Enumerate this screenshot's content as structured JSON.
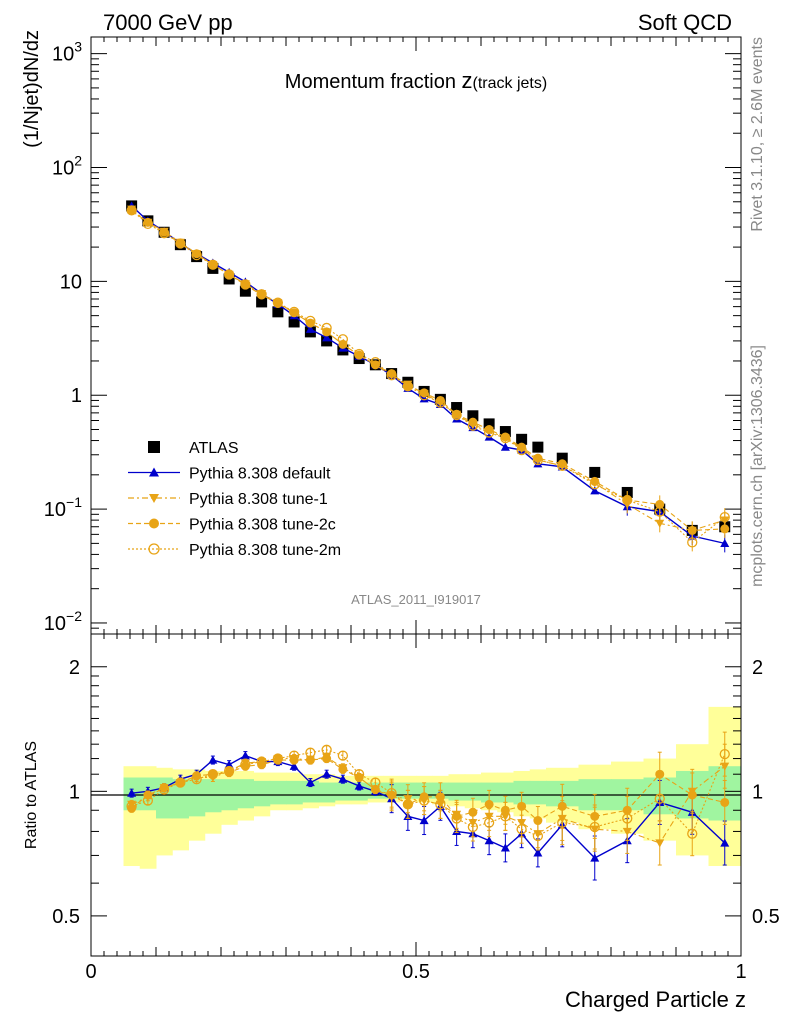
{
  "header": {
    "left": "7000 GeV pp",
    "right": "Soft QCD"
  },
  "side_text": {
    "rivet": "Rivet 3.1.10, ≥ 2.6M events",
    "mcplots": "mcplots.cern.ch [arXiv:1306.3436]"
  },
  "analysis_id": "ATLAS_2011_I919017",
  "colors": {
    "data": "#000000",
    "default": "#0000cc",
    "tunes": "#e8a416",
    "band_green": "#a0f5a0",
    "band_yellow": "#ffff99"
  },
  "chart_data": [
    {
      "type": "scatter",
      "title_main": "Momentum fraction ",
      "title_var": "z",
      "title_sub": "(track jets)",
      "ylabel": "(1/Njet)dN/dz",
      "xlabel": "",
      "yscale": "log",
      "xlim": [
        0,
        1
      ],
      "ylim": [
        0.008,
        1400
      ],
      "y_ticks": [
        {
          "v": 0.01,
          "base": "10",
          "exp": "−2"
        },
        {
          "v": 0.1,
          "base": "10",
          "exp": "−1"
        },
        {
          "v": 1,
          "base": "1",
          "exp": ""
        },
        {
          "v": 10,
          "base": "10",
          "exp": ""
        },
        {
          "v": 100,
          "base": "10",
          "exp": "2"
        },
        {
          "v": 1000,
          "base": "10",
          "exp": "3"
        }
      ],
      "x": [
        0.0625,
        0.0875,
        0.1125,
        0.1375,
        0.1625,
        0.1875,
        0.2125,
        0.2375,
        0.2625,
        0.2875,
        0.3125,
        0.3375,
        0.3625,
        0.3875,
        0.4125,
        0.4375,
        0.4625,
        0.4875,
        0.5125,
        0.5375,
        0.5625,
        0.5875,
        0.6125,
        0.6375,
        0.6625,
        0.6875,
        0.725,
        0.775,
        0.825,
        0.875,
        0.925,
        0.975
      ],
      "legend": [
        {
          "label": "ATLAS",
          "marker": "square"
        },
        {
          "label": "Pythia 8.308 default",
          "marker": "triangle-up"
        },
        {
          "label": "Pythia 8.308 tune-1",
          "marker": "triangle-down"
        },
        {
          "label": "Pythia 8.308 tune-2c",
          "marker": "circle"
        },
        {
          "label": "Pythia 8.308 tune-2m",
          "marker": "open-circle"
        }
      ],
      "series": [
        {
          "name": "ATLAS",
          "values": [
            46,
            34,
            27,
            21,
            16.5,
            13,
            10.5,
            8.2,
            6.6,
            5.4,
            4.4,
            3.6,
            3.0,
            2.5,
            2.1,
            1.85,
            1.55,
            1.3,
            1.08,
            0.92,
            0.78,
            0.66,
            0.56,
            0.48,
            0.41,
            0.35,
            0.28,
            0.21,
            0.14,
            0.1,
            0.065,
            0.07
          ]
        },
        {
          "name": "Pythia 8.308 default",
          "values": [
            46,
            34,
            27.5,
            21.5,
            17.5,
            14.5,
            12,
            9.9,
            7.8,
            6.3,
            5.0,
            3.8,
            3.2,
            2.6,
            2.2,
            1.85,
            1.5,
            1.15,
            0.93,
            0.83,
            0.62,
            0.52,
            0.43,
            0.35,
            0.33,
            0.25,
            0.235,
            0.145,
            0.105,
            0.095,
            0.058,
            0.05
          ]
        },
        {
          "name": "Pythia 8.308 tune-1",
          "values": [
            43,
            33,
            27.5,
            22,
            17.5,
            14,
            11.5,
            9.5,
            7.8,
            6.5,
            5.3,
            4.3,
            3.6,
            2.8,
            2.25,
            1.85,
            1.5,
            1.25,
            1.03,
            0.86,
            0.68,
            0.55,
            0.49,
            0.42,
            0.34,
            0.27,
            0.24,
            0.17,
            0.11,
            0.075,
            0.065,
            0.08
          ]
        },
        {
          "name": "Pythia 8.308 tune-2c",
          "values": [
            42,
            33,
            27,
            21.5,
            17.5,
            14,
            11.5,
            9.3,
            7.6,
            6.4,
            5.3,
            4.3,
            3.6,
            2.8,
            2.25,
            1.85,
            1.55,
            1.2,
            1.05,
            0.9,
            0.68,
            0.58,
            0.5,
            0.43,
            0.35,
            0.28,
            0.25,
            0.175,
            0.12,
            0.11,
            0.065,
            0.067
          ]
        },
        {
          "name": "Pythia 8.308 tune-2m",
          "values": [
            42,
            32,
            26.5,
            21.5,
            17,
            14,
            11.5,
            9.4,
            7.7,
            6.5,
            5.4,
            4.5,
            3.9,
            3.1,
            2.3,
            1.95,
            1.5,
            1.2,
            1.0,
            0.86,
            0.67,
            0.54,
            0.47,
            0.42,
            0.33,
            0.27,
            0.24,
            0.165,
            0.12,
            0.095,
            0.051,
            0.085
          ]
        }
      ]
    },
    {
      "type": "scatter",
      "ylabel": "Ratio to ATLAS",
      "xlabel": "Charged Particle z",
      "yscale": "log",
      "xlim": [
        0,
        1
      ],
      "ylim": [
        0.4,
        2.4
      ],
      "y_ticks": [
        0.5,
        1,
        2
      ],
      "x_ticks": [
        {
          "v": 0,
          "label": "0"
        },
        {
          "v": 0.5,
          "label": "0.5"
        },
        {
          "v": 1,
          "label": "1"
        }
      ],
      "band_edges": [
        0.05,
        0.075,
        0.1,
        0.125,
        0.15,
        0.175,
        0.2,
        0.225,
        0.25,
        0.275,
        0.3,
        0.325,
        0.35,
        0.375,
        0.4,
        0.425,
        0.45,
        0.475,
        0.5,
        0.525,
        0.55,
        0.575,
        0.6,
        0.625,
        0.65,
        0.675,
        0.7,
        0.75,
        0.8,
        0.85,
        0.9,
        0.95,
        1.0
      ],
      "band_green": {
        "low": [
          0.9,
          0.9,
          0.86,
          0.86,
          0.87,
          0.89,
          0.9,
          0.91,
          0.92,
          0.93,
          0.93,
          0.94,
          0.94,
          0.95,
          0.95,
          0.96,
          0.96,
          0.96,
          0.96,
          0.96,
          0.95,
          0.95,
          0.94,
          0.94,
          0.93,
          0.93,
          0.92,
          0.9,
          0.9,
          0.88,
          0.86,
          0.85
        ],
        "high": [
          1.08,
          1.08,
          1.08,
          1.07,
          1.07,
          1.07,
          1.07,
          1.07,
          1.06,
          1.06,
          1.06,
          1.06,
          1.05,
          1.05,
          1.05,
          1.05,
          1.05,
          1.05,
          1.05,
          1.05,
          1.05,
          1.05,
          1.05,
          1.05,
          1.06,
          1.06,
          1.06,
          1.07,
          1.07,
          1.08,
          1.12,
          1.15
        ]
      },
      "band_yellow": {
        "low": [
          0.66,
          0.65,
          0.7,
          0.72,
          0.76,
          0.79,
          0.83,
          0.85,
          0.87,
          0.9,
          0.9,
          0.91,
          0.92,
          0.93,
          0.93,
          0.94,
          0.94,
          0.95,
          0.94,
          0.93,
          0.92,
          0.91,
          0.9,
          0.89,
          0.87,
          0.86,
          0.84,
          0.81,
          0.79,
          0.76,
          0.7,
          0.66
        ],
        "high": [
          1.15,
          1.15,
          1.14,
          1.13,
          1.13,
          1.12,
          1.12,
          1.12,
          1.11,
          1.11,
          1.11,
          1.1,
          1.1,
          1.09,
          1.09,
          1.09,
          1.09,
          1.09,
          1.09,
          1.09,
          1.1,
          1.1,
          1.11,
          1.11,
          1.12,
          1.13,
          1.14,
          1.16,
          1.18,
          1.2,
          1.3,
          1.6
        ]
      },
      "series": [
        {
          "name": "Pythia 8.308 default",
          "values": [
            0.99,
            1.0,
            1.02,
            1.07,
            1.1,
            1.19,
            1.16,
            1.22,
            1.18,
            1.18,
            1.15,
            1.05,
            1.1,
            1.07,
            1.03,
            1.0,
            0.96,
            0.87,
            0.85,
            0.92,
            0.8,
            0.79,
            0.76,
            0.73,
            0.79,
            0.71,
            0.83,
            0.69,
            0.76,
            0.94,
            0.89,
            0.75
          ]
        },
        {
          "name": "Pythia 8.308 tune-1",
          "values": [
            0.93,
            0.97,
            1.02,
            1.05,
            1.08,
            1.08,
            1.12,
            1.17,
            1.18,
            1.2,
            1.2,
            1.19,
            1.21,
            1.14,
            1.08,
            1.01,
            0.97,
            0.96,
            0.95,
            0.93,
            0.88,
            0.84,
            0.87,
            0.87,
            0.84,
            0.79,
            0.86,
            0.81,
            0.8,
            0.75,
            1.0,
            1.15
          ]
        },
        {
          "name": "Pythia 8.308 tune-2c",
          "values": [
            0.91,
            0.98,
            1.02,
            1.05,
            1.09,
            1.1,
            1.11,
            1.15,
            1.16,
            1.19,
            1.19,
            1.19,
            1.2,
            1.13,
            1.08,
            1.01,
            0.98,
            0.93,
            0.97,
            0.97,
            0.87,
            0.89,
            0.93,
            0.9,
            0.92,
            0.85,
            0.92,
            0.87,
            0.9,
            1.1,
            0.98,
            0.94
          ]
        },
        {
          "name": "Pythia 8.308 tune-2m",
          "values": [
            0.92,
            0.95,
            1.01,
            1.05,
            1.07,
            1.1,
            1.12,
            1.16,
            1.18,
            1.2,
            1.22,
            1.24,
            1.26,
            1.22,
            1.1,
            1.05,
            0.99,
            0.93,
            0.95,
            0.93,
            0.86,
            0.82,
            0.84,
            0.87,
            0.81,
            0.78,
            0.84,
            0.82,
            0.86,
            0.96,
            0.79,
            1.23
          ]
        }
      ]
    }
  ]
}
